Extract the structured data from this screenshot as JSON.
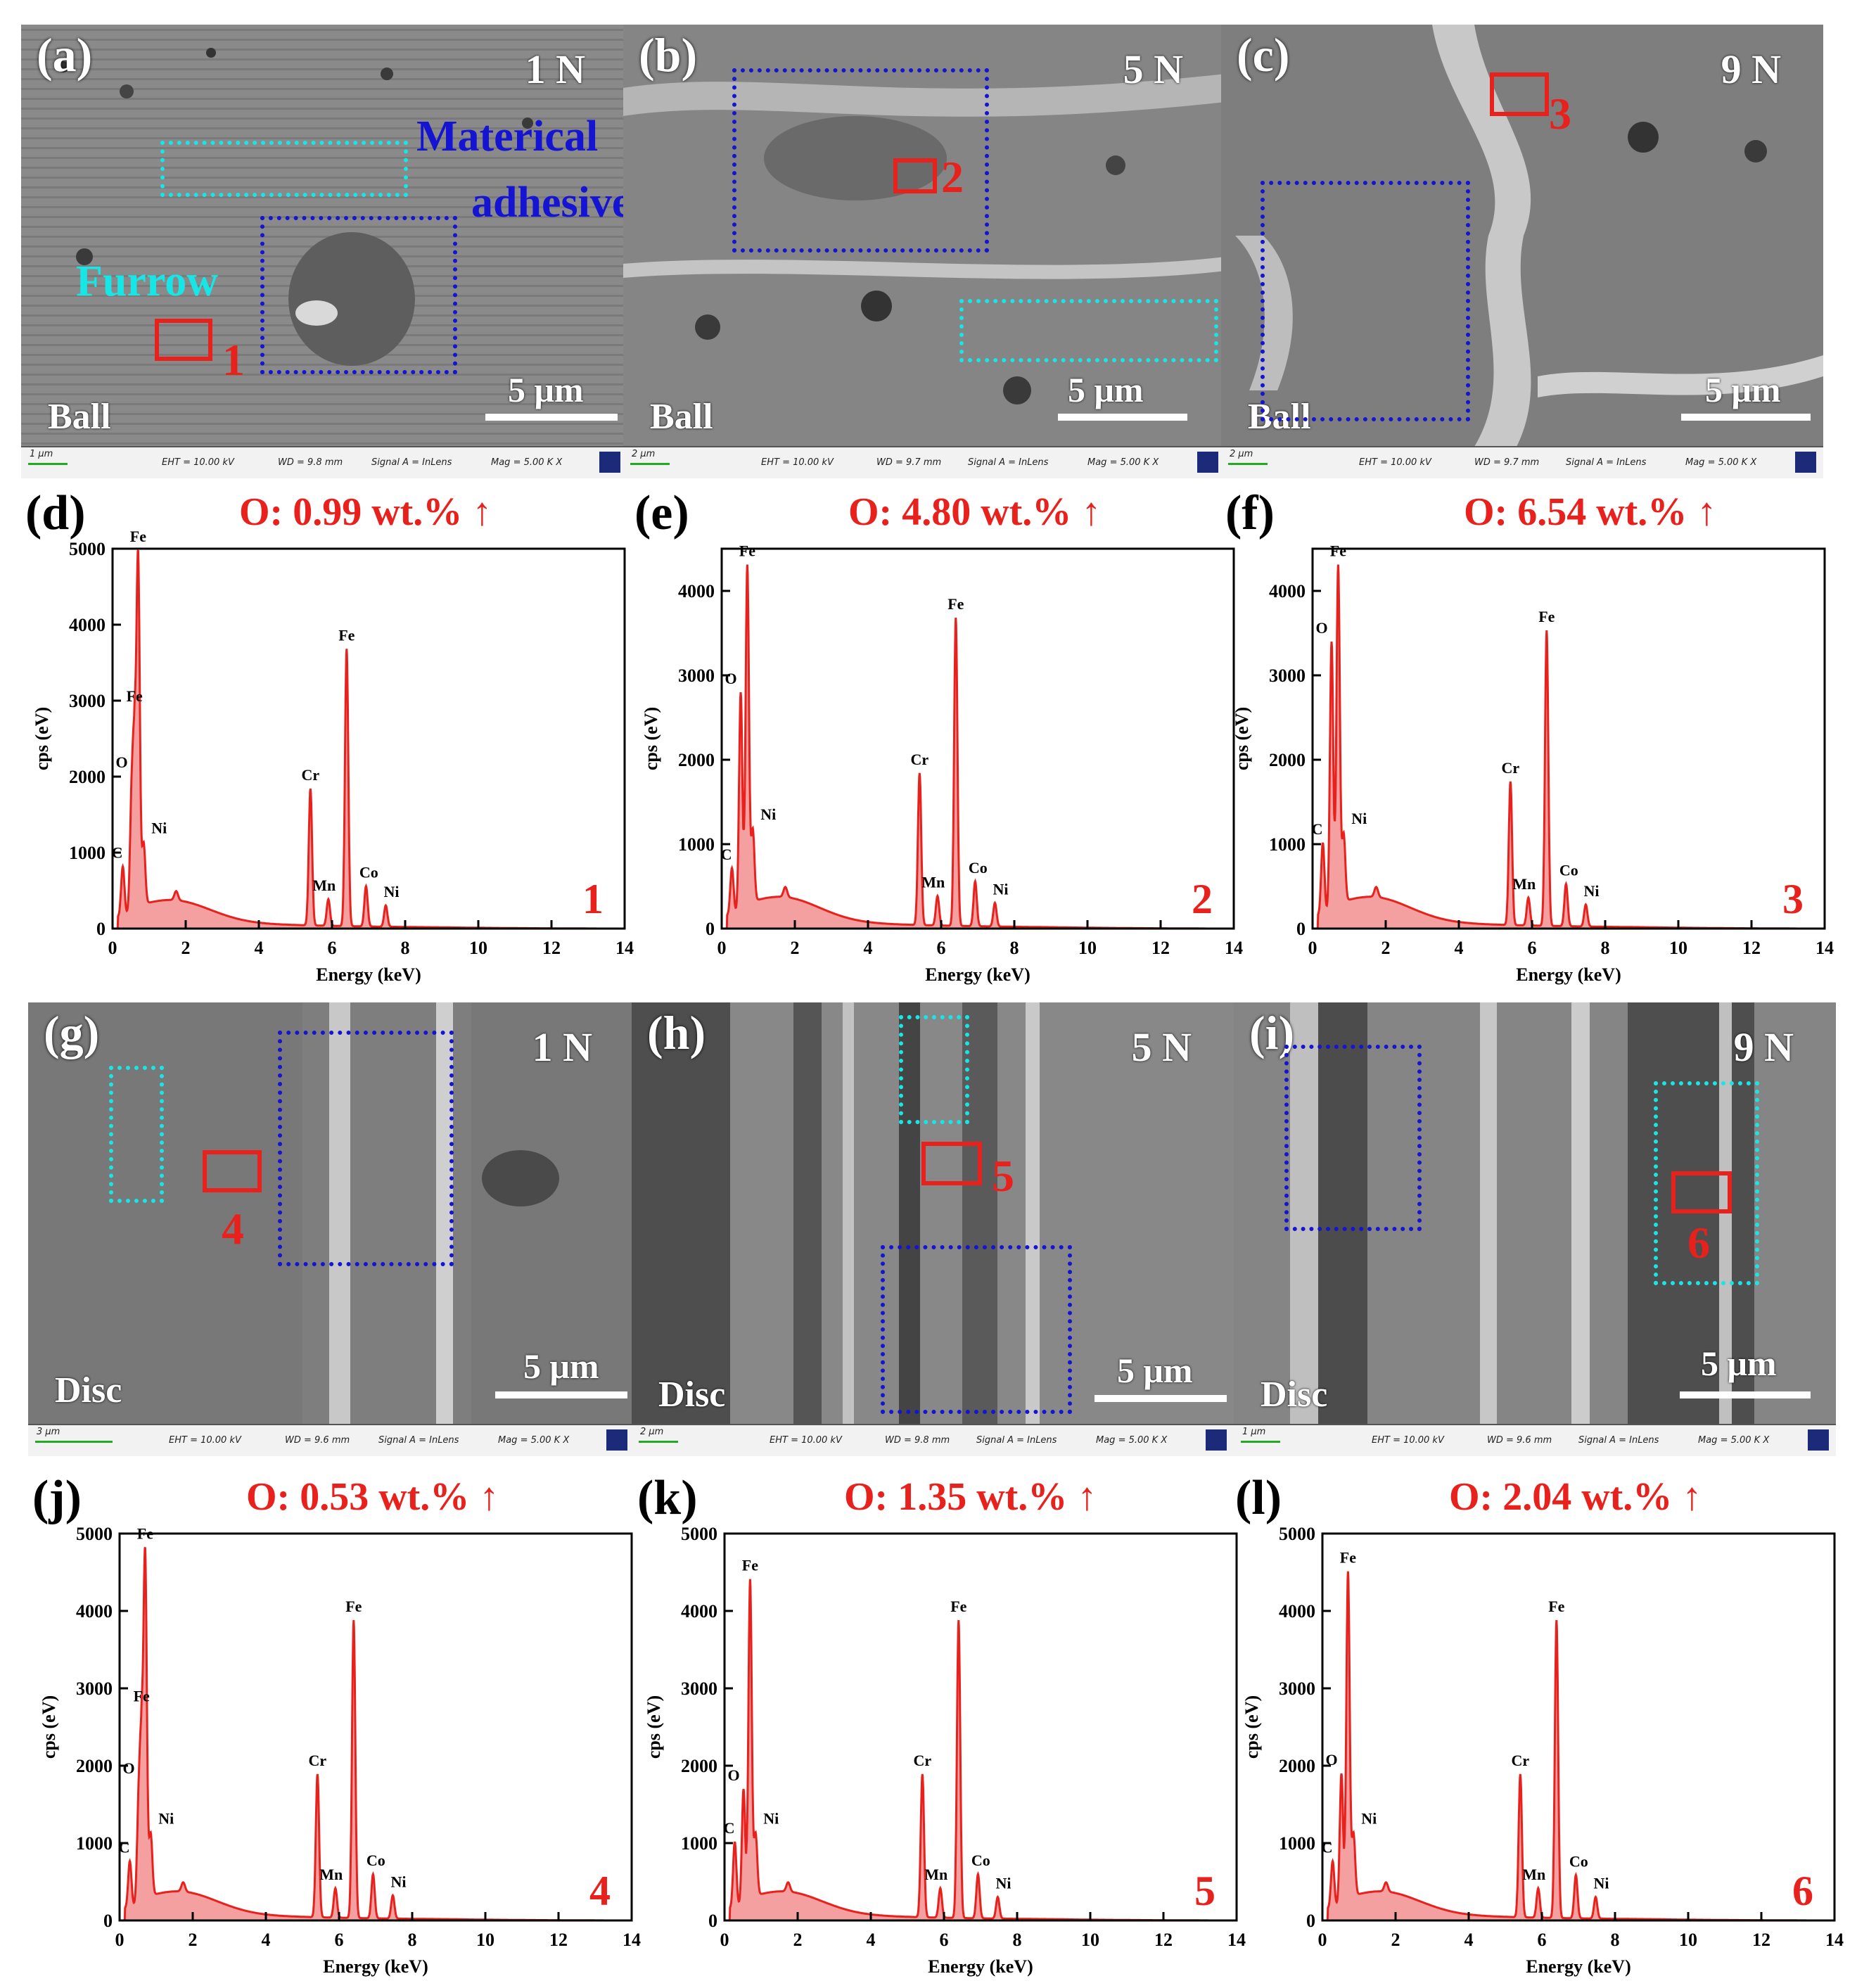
{
  "sem_panels": [
    {
      "id": "a",
      "label": "(a)",
      "load": "1 N",
      "specimen": "Ball",
      "scale": "5 μm",
      "info": {
        "mini": "1 μm",
        "eht": "EHT = 10.00 kV",
        "wd": "WD = 9.8 mm",
        "signal": "Signal A = InLens",
        "mag": "Mag =    5.00 K X"
      }
    },
    {
      "id": "b",
      "label": "(b)",
      "load": "5 N",
      "specimen": "Ball",
      "scale": "5 μm",
      "info": {
        "mini": "2 μm",
        "eht": "EHT = 10.00 kV",
        "wd": "WD = 9.7 mm",
        "signal": "Signal A = InLens",
        "mag": "Mag =    5.00 K X"
      }
    },
    {
      "id": "c",
      "label": "(c)",
      "load": "9 N",
      "specimen": "Ball",
      "scale": "5 μm",
      "info": {
        "mini": "2 μm",
        "eht": "EHT = 10.00 kV",
        "wd": "WD = 9.7 mm",
        "signal": "Signal A = InLens",
        "mag": "Mag =    5.00 K X"
      }
    },
    {
      "id": "g",
      "label": "(g)",
      "load": "1 N",
      "specimen": "Disc",
      "scale": "5 μm",
      "info": {
        "mini": "3 μm",
        "eht": "EHT = 10.00 kV",
        "wd": "WD = 9.6 mm",
        "signal": "Signal A = InLens",
        "mag": "Mag =    5.00 K X"
      }
    },
    {
      "id": "h",
      "label": "(h)",
      "load": "5 N",
      "specimen": "Disc",
      "scale": "5 μm",
      "info": {
        "mini": "2 μm",
        "eht": "EHT = 10.00 kV",
        "wd": "WD = 9.8 mm",
        "signal": "Signal A = InLens",
        "mag": "Mag =    5.00 K X"
      }
    },
    {
      "id": "i",
      "label": "(i)",
      "load": "9 N",
      "specimen": "Disc",
      "scale": "5 μm",
      "info": {
        "mini": "1 μm",
        "eht": "EHT = 10.00 kV",
        "wd": "WD = 9.6 mm",
        "signal": "Signal A = InLens",
        "mag": "Mag =    5.00 K X"
      }
    }
  ],
  "annotations": {
    "furrow": "Furrow",
    "material_line1": "Materical",
    "material_line2": "adhesive",
    "points": [
      "1",
      "2",
      "3",
      "4",
      "5",
      "6"
    ]
  },
  "colors": {
    "red_box": "#e8211d",
    "adhesive_box": "#1414d2",
    "furrow_box": "#17e6e6",
    "spectrum_fill": "#f4a0a0",
    "spectrum_line": "#e8211d"
  },
  "chart_data": [
    {
      "type": "area",
      "panel": "(d)",
      "title": "O: 0.99 wt.% ↑",
      "xlabel": "Energy (keV)",
      "ylabel": "cps (eV)",
      "xlim": [
        0,
        14
      ],
      "ylim": [
        0,
        5000
      ],
      "xticks": [
        0,
        2,
        4,
        6,
        8,
        10,
        12,
        14
      ],
      "yticks": [
        0,
        1000,
        2000,
        3000,
        4000,
        5000
      ],
      "point": "1",
      "peaks": [
        {
          "el": "C",
          "e": 0.28,
          "cps": 650
        },
        {
          "el": "O",
          "e": 0.52,
          "cps": 1400
        },
        {
          "el": "Fe",
          "e": 0.6,
          "cps": 2000
        },
        {
          "el": "Fe",
          "e": 0.7,
          "cps": 4500
        },
        {
          "el": "Ni",
          "e": 0.85,
          "cps": 800
        },
        {
          "el": "Cr",
          "e": 5.41,
          "cps": 1800
        },
        {
          "el": "Mn",
          "e": 5.9,
          "cps": 350
        },
        {
          "el": "Fe",
          "e": 6.4,
          "cps": 3650
        },
        {
          "el": "Co",
          "e": 6.93,
          "cps": 530
        },
        {
          "el": "Ni",
          "e": 7.47,
          "cps": 280
        }
      ]
    },
    {
      "type": "area",
      "panel": "(e)",
      "title": "O: 4.80 wt.%  ↑",
      "xlabel": "Energy (keV)",
      "ylabel": "cps (eV)",
      "xlim": [
        0,
        14
      ],
      "ylim": [
        0,
        4500
      ],
      "xticks": [
        0,
        2,
        4,
        6,
        8,
        10,
        12,
        14
      ],
      "yticks": [
        0,
        1000,
        2000,
        3000,
        4000
      ],
      "point": "2",
      "peaks": [
        {
          "el": "C",
          "e": 0.28,
          "cps": 550
        },
        {
          "el": "O",
          "e": 0.52,
          "cps": 2600
        },
        {
          "el": "Fe",
          "e": 0.7,
          "cps": 4000
        },
        {
          "el": "Ni",
          "e": 0.85,
          "cps": 850
        },
        {
          "el": "Cr",
          "e": 5.41,
          "cps": 1800
        },
        {
          "el": "Mn",
          "e": 5.9,
          "cps": 350
        },
        {
          "el": "Fe",
          "e": 6.4,
          "cps": 3650
        },
        {
          "el": "Co",
          "e": 6.93,
          "cps": 530
        },
        {
          "el": "Ni",
          "e": 7.47,
          "cps": 280
        }
      ]
    },
    {
      "type": "area",
      "panel": "(f)",
      "title": "O: 6.54 wt.%  ↑",
      "xlabel": "Energy (keV)",
      "ylabel": "cps (eV)",
      "xlim": [
        0,
        14
      ],
      "ylim": [
        0,
        4500
      ],
      "xticks": [
        0,
        2,
        4,
        6,
        8,
        10,
        12,
        14
      ],
      "yticks": [
        0,
        1000,
        2000,
        3000,
        4000
      ],
      "point": "3",
      "peaks": [
        {
          "el": "C",
          "e": 0.28,
          "cps": 850
        },
        {
          "el": "O",
          "e": 0.52,
          "cps": 3200
        },
        {
          "el": "Fe",
          "e": 0.7,
          "cps": 4000
        },
        {
          "el": "Ni",
          "e": 0.85,
          "cps": 800
        },
        {
          "el": "Cr",
          "e": 5.41,
          "cps": 1700
        },
        {
          "el": "Mn",
          "e": 5.9,
          "cps": 330
        },
        {
          "el": "Fe",
          "e": 6.4,
          "cps": 3500
        },
        {
          "el": "Co",
          "e": 6.93,
          "cps": 500
        },
        {
          "el": "Ni",
          "e": 7.47,
          "cps": 260
        }
      ]
    },
    {
      "type": "area",
      "panel": "(j)",
      "title": "O: 0.53 wt.% ↑",
      "xlabel": "Energy (keV)",
      "ylabel": "cps (eV)",
      "xlim": [
        0,
        14
      ],
      "ylim": [
        0,
        5000
      ],
      "xticks": [
        0,
        2,
        4,
        6,
        8,
        10,
        12,
        14
      ],
      "yticks": [
        0,
        1000,
        2000,
        3000,
        4000,
        5000
      ],
      "point": "4",
      "peaks": [
        {
          "el": "C",
          "e": 0.28,
          "cps": 600
        },
        {
          "el": "O",
          "e": 0.52,
          "cps": 1200
        },
        {
          "el": "Fe",
          "e": 0.6,
          "cps": 1900
        },
        {
          "el": "Fe",
          "e": 0.7,
          "cps": 4350
        },
        {
          "el": "Ni",
          "e": 0.85,
          "cps": 800
        },
        {
          "el": "Cr",
          "e": 5.41,
          "cps": 1850
        },
        {
          "el": "Mn",
          "e": 5.9,
          "cps": 380
        },
        {
          "el": "Fe",
          "e": 6.4,
          "cps": 3850
        },
        {
          "el": "Co",
          "e": 6.93,
          "cps": 570
        },
        {
          "el": "Ni",
          "e": 7.47,
          "cps": 300
        }
      ]
    },
    {
      "type": "area",
      "panel": "(k)",
      "title": "O: 1.35 wt.% ↑",
      "xlabel": "Energy (keV)",
      "ylabel": "cps (eV)",
      "xlim": [
        0,
        14
      ],
      "ylim": [
        0,
        5000
      ],
      "xticks": [
        0,
        2,
        4,
        6,
        8,
        10,
        12,
        14
      ],
      "yticks": [
        0,
        1000,
        2000,
        3000,
        4000,
        5000
      ],
      "point": "5",
      "peaks": [
        {
          "el": "C",
          "e": 0.28,
          "cps": 850
        },
        {
          "el": "O",
          "e": 0.52,
          "cps": 1500
        },
        {
          "el": "Fe",
          "e": 0.7,
          "cps": 4100
        },
        {
          "el": "Ni",
          "e": 0.85,
          "cps": 800
        },
        {
          "el": "Cr",
          "e": 5.41,
          "cps": 1850
        },
        {
          "el": "Mn",
          "e": 5.9,
          "cps": 380
        },
        {
          "el": "Fe",
          "e": 6.4,
          "cps": 3850
        },
        {
          "el": "Co",
          "e": 6.93,
          "cps": 570
        },
        {
          "el": "Ni",
          "e": 7.47,
          "cps": 280
        }
      ]
    },
    {
      "type": "area",
      "panel": "(l)",
      "title": "O: 2.04 wt.% ↑",
      "xlabel": "Energy (keV)",
      "ylabel": "cps (eV)",
      "xlim": [
        0,
        14
      ],
      "ylim": [
        0,
        5000
      ],
      "xticks": [
        0,
        2,
        4,
        6,
        8,
        10,
        12,
        14
      ],
      "yticks": [
        0,
        1000,
        2000,
        3000,
        4000,
        5000
      ],
      "point": "6",
      "peaks": [
        {
          "el": "C",
          "e": 0.28,
          "cps": 600
        },
        {
          "el": "O",
          "e": 0.52,
          "cps": 1700
        },
        {
          "el": "Fe",
          "e": 0.7,
          "cps": 4200
        },
        {
          "el": "Ni",
          "e": 0.85,
          "cps": 800
        },
        {
          "el": "Cr",
          "e": 5.41,
          "cps": 1850
        },
        {
          "el": "Mn",
          "e": 5.9,
          "cps": 380
        },
        {
          "el": "Fe",
          "e": 6.4,
          "cps": 3850
        },
        {
          "el": "Co",
          "e": 6.93,
          "cps": 560
        },
        {
          "el": "Ni",
          "e": 7.47,
          "cps": 280
        }
      ]
    }
  ]
}
